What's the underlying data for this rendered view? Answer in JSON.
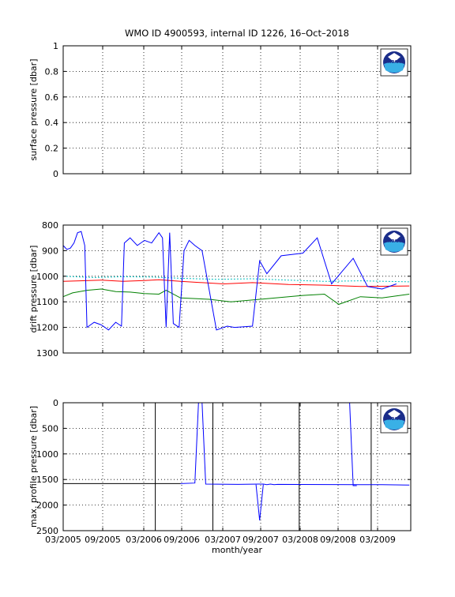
{
  "figure": {
    "title": "WMO ID 4900593, internal ID 1226, 16–Oct–2018",
    "xlabel": "month/year",
    "logo_text": "NOAA",
    "x_ticks": [
      "03/2005",
      "09/2005",
      "03/2006",
      "09/2006",
      "03/2007",
      "09/2007",
      "03/2008",
      "09/2008",
      "03/2009"
    ]
  },
  "chart_data": [
    {
      "type": "line",
      "title": "",
      "xlabel": "",
      "ylabel": "surface pressure [dbar]",
      "xlim": [
        2005.17,
        2010.0
      ],
      "ylim": [
        0,
        1
      ],
      "y_reversed": false,
      "yticks": [
        0,
        0.2,
        0.4,
        0.6,
        0.8,
        1
      ],
      "yticklabels": [
        "0",
        "0.2",
        "0.4",
        "0.6",
        "0.8",
        "1"
      ],
      "grid": true,
      "series": []
    },
    {
      "type": "line",
      "title": "",
      "xlabel": "",
      "ylabel": "drift pressure [dbar]",
      "xlim": [
        2005.17,
        2010.0
      ],
      "ylim": [
        800,
        1300
      ],
      "y_reversed": true,
      "yticks": [
        800,
        900,
        1000,
        1100,
        1200,
        1300
      ],
      "yticklabels": [
        "800",
        "900",
        "1000",
        "1100",
        "1200",
        "1300"
      ],
      "grid": true,
      "series": [
        {
          "color": "#00bfbf",
          "style": "dotted",
          "x": [
            2005.17,
            2005.6,
            2006.0,
            2006.4,
            2006.8,
            2007.3,
            2007.8,
            2008.3,
            2008.8,
            2009.3,
            2009.98
          ],
          "y": [
            1000,
            1005,
            1002,
            1003,
            1008,
            1012,
            1010,
            1015,
            1020,
            1018,
            1022
          ]
        },
        {
          "color": "#ff0000",
          "style": "solid",
          "x": [
            2005.17,
            2005.4,
            2005.7,
            2006.0,
            2006.3,
            2006.5,
            2006.8,
            2007.4,
            2007.8,
            2008.3,
            2008.8,
            2009.3,
            2009.98
          ],
          "y": [
            1020,
            1018,
            1015,
            1020,
            1017,
            1014,
            1020,
            1030,
            1025,
            1032,
            1035,
            1040,
            1038
          ]
        },
        {
          "color": "#008000",
          "style": "solid",
          "x": [
            2005.17,
            2005.3,
            2005.5,
            2005.7,
            2005.9,
            2006.1,
            2006.3,
            2006.5,
            2006.6,
            2006.8,
            2007.2,
            2007.5,
            2008.0,
            2008.5,
            2008.8,
            2009.0,
            2009.3,
            2009.6,
            2009.98
          ],
          "y": [
            1080,
            1065,
            1055,
            1050,
            1060,
            1062,
            1068,
            1070,
            1055,
            1085,
            1090,
            1100,
            1088,
            1075,
            1070,
            1110,
            1080,
            1085,
            1070
          ]
        },
        {
          "color": "#0000ff",
          "style": "solid",
          "x": [
            2005.17,
            2005.22,
            2005.27,
            2005.32,
            2005.37,
            2005.42,
            2005.47,
            2005.5,
            2005.6,
            2005.7,
            2005.8,
            2005.9,
            2005.98,
            2006.02,
            2006.1,
            2006.2,
            2006.3,
            2006.4,
            2006.5,
            2006.55,
            2006.6,
            2006.65,
            2006.7,
            2006.78,
            2006.85,
            2006.92,
            2007.0,
            2007.1,
            2007.3,
            2007.45,
            2007.55,
            2007.8,
            2007.9,
            2008.0,
            2008.2,
            2008.5,
            2008.7,
            2008.9,
            2009.2,
            2009.4,
            2009.6,
            2009.8
          ],
          "y": [
            880,
            895,
            890,
            870,
            830,
            825,
            880,
            1200,
            1180,
            1190,
            1210,
            1180,
            1195,
            870,
            850,
            880,
            860,
            870,
            830,
            850,
            1200,
            830,
            1185,
            1200,
            900,
            860,
            880,
            900,
            1210,
            1195,
            1200,
            1195,
            940,
            990,
            920,
            910,
            850,
            1030,
            930,
            1040,
            1050,
            1030
          ]
        }
      ]
    },
    {
      "type": "line",
      "title": "",
      "xlabel": "month/year",
      "ylabel": "max. profile pressure [dbar]",
      "xlim": [
        2005.17,
        2010.0
      ],
      "ylim": [
        0,
        2500
      ],
      "y_reversed": true,
      "yticks": [
        0,
        500,
        1000,
        1500,
        2000,
        2500
      ],
      "yticklabels": [
        "0",
        "500",
        "1000",
        "1500",
        "2000",
        "2500"
      ],
      "grid": true,
      "series": [
        {
          "color": "#000000",
          "style": "solid",
          "x": [
            2005.17,
            2006.8
          ],
          "y": [
            1580,
            1580
          ]
        },
        {
          "color": "#0000ff",
          "style": "solid",
          "x": [
            2006.8,
            2007.0,
            2007.05,
            2007.1,
            2007.15,
            2007.6,
            2007.9,
            2007.95,
            2008.0,
            2008.05,
            2008.1,
            2008.15,
            2009.3,
            2009.6,
            2009.98
          ],
          "y": [
            1580,
            1570,
            0,
            0,
            1590,
            1595,
            1590,
            1590,
            1600,
            1590,
            1600,
            1595,
            1600,
            1600,
            1610
          ]
        },
        {
          "color": "#0000ff",
          "style": "solid",
          "x": [
            2007.85,
            2007.9,
            2007.95
          ],
          "y": [
            1600,
            2300,
            1600
          ]
        },
        {
          "color": "#0000ff",
          "style": "solid",
          "x": [
            2009.15,
            2009.2,
            2009.25
          ],
          "y": [
            0,
            1620,
            1620
          ]
        }
      ],
      "vlines": [
        2006.45,
        2007.25,
        2008.45,
        2009.45
      ]
    }
  ]
}
